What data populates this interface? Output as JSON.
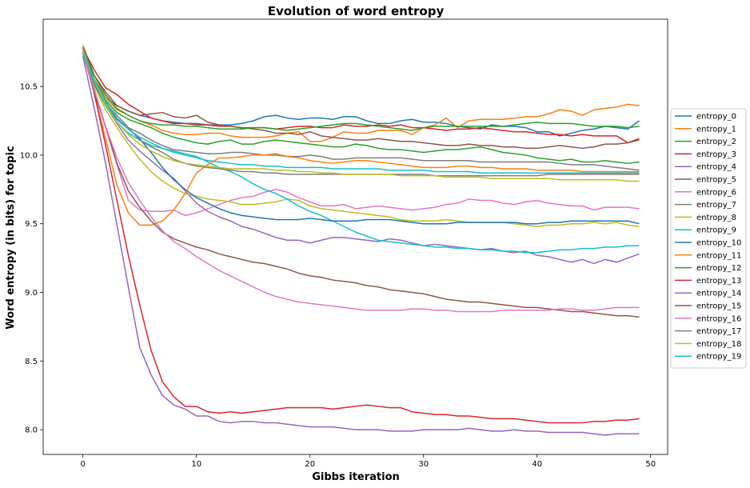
{
  "chart_data": {
    "type": "line",
    "title": "Evolution of word entropy",
    "xlabel": "Gibbs iteration",
    "ylabel": "Word entropy (in bits) for topic",
    "xlim": [
      -3.5,
      51.5
    ],
    "ylim": [
      7.82,
      10.99
    ],
    "xticks": [
      0,
      10,
      20,
      30,
      40,
      50
    ],
    "yticks": [
      8.0,
      8.5,
      9.0,
      9.5,
      10.0,
      10.5
    ],
    "grid": false,
    "legend_position": "center-right-outside",
    "x": [
      0,
      1,
      2,
      3,
      4,
      5,
      6,
      7,
      8,
      9,
      10,
      11,
      12,
      13,
      14,
      15,
      16,
      17,
      18,
      19,
      20,
      21,
      22,
      23,
      24,
      25,
      26,
      27,
      28,
      29,
      30,
      31,
      32,
      33,
      34,
      35,
      36,
      37,
      38,
      39,
      40,
      41,
      42,
      43,
      44,
      45,
      46,
      47,
      48,
      49
    ],
    "series": [
      {
        "name": "entropy_0",
        "color": "#1f77b4",
        "values": [
          10.74,
          10.55,
          10.42,
          10.36,
          10.32,
          10.29,
          10.27,
          10.25,
          10.24,
          10.23,
          10.23,
          10.22,
          10.22,
          10.22,
          10.23,
          10.25,
          10.28,
          10.29,
          10.27,
          10.26,
          10.27,
          10.27,
          10.26,
          10.28,
          10.28,
          10.25,
          10.23,
          10.23,
          10.25,
          10.26,
          10.24,
          10.24,
          10.23,
          10.21,
          10.2,
          10.19,
          10.22,
          10.21,
          10.21,
          10.2,
          10.17,
          10.17,
          10.14,
          10.16,
          10.18,
          10.19,
          10.21,
          10.2,
          10.19,
          10.25
        ]
      },
      {
        "name": "entropy_1",
        "color": "#ff7f0e",
        "values": [
          10.79,
          10.58,
          10.42,
          10.33,
          10.29,
          10.25,
          10.22,
          10.18,
          10.16,
          10.15,
          10.15,
          10.16,
          10.16,
          10.14,
          10.13,
          10.13,
          10.13,
          10.14,
          10.16,
          10.17,
          10.1,
          10.1,
          10.13,
          10.17,
          10.16,
          10.16,
          10.18,
          10.18,
          10.18,
          10.15,
          10.2,
          10.22,
          10.27,
          10.2,
          10.25,
          10.26,
          10.26,
          10.26,
          10.27,
          10.28,
          10.28,
          10.3,
          10.33,
          10.32,
          10.29,
          10.33,
          10.34,
          10.35,
          10.37,
          10.36
        ]
      },
      {
        "name": "entropy_2",
        "color": "#2ca02c",
        "values": [
          10.79,
          10.55,
          10.4,
          10.31,
          10.26,
          10.23,
          10.2,
          10.16,
          10.13,
          10.11,
          10.09,
          10.08,
          10.1,
          10.11,
          10.08,
          10.08,
          10.1,
          10.11,
          10.1,
          10.09,
          10.08,
          10.07,
          10.06,
          10.06,
          10.08,
          10.07,
          10.05,
          10.04,
          10.04,
          10.03,
          10.02,
          10.03,
          10.04,
          10.04,
          10.05,
          10.06,
          10.04,
          10.02,
          10.01,
          10.0,
          9.98,
          9.97,
          9.96,
          9.97,
          9.95,
          9.95,
          9.96,
          9.95,
          9.94,
          9.95
        ]
      },
      {
        "name": "entropy_3",
        "color": "#d62728",
        "values": [
          10.78,
          10.62,
          10.49,
          10.44,
          10.37,
          10.32,
          10.27,
          10.25,
          10.23,
          10.23,
          10.22,
          10.22,
          10.21,
          10.21,
          10.2,
          10.2,
          10.2,
          10.19,
          10.2,
          10.21,
          10.21,
          10.2,
          10.2,
          10.22,
          10.21,
          10.21,
          10.22,
          10.21,
          10.22,
          10.2,
          10.2,
          10.19,
          10.18,
          10.19,
          10.19,
          10.2,
          10.19,
          10.18,
          10.17,
          10.17,
          10.16,
          10.15,
          10.15,
          10.14,
          10.15,
          10.14,
          10.14,
          10.14,
          10.09,
          10.12
        ]
      },
      {
        "name": "entropy_4",
        "color": "#9467bd",
        "values": [
          10.72,
          10.52,
          10.36,
          10.23,
          10.11,
          10.03,
          9.96,
          9.89,
          9.83,
          9.74,
          9.65,
          9.59,
          9.55,
          9.52,
          9.48,
          9.46,
          9.43,
          9.4,
          9.38,
          9.38,
          9.36,
          9.38,
          9.4,
          9.4,
          9.39,
          9.38,
          9.37,
          9.39,
          9.38,
          9.36,
          9.34,
          9.35,
          9.34,
          9.33,
          9.32,
          9.31,
          9.32,
          9.3,
          9.29,
          9.3,
          9.27,
          9.26,
          9.24,
          9.22,
          9.24,
          9.21,
          9.24,
          9.22,
          9.25,
          9.28
        ]
      },
      {
        "name": "entropy_5",
        "color": "#8c564b",
        "values": [
          10.8,
          10.58,
          10.46,
          10.36,
          10.32,
          10.29,
          10.3,
          10.31,
          10.28,
          10.27,
          10.29,
          10.24,
          10.22,
          10.21,
          10.2,
          10.19,
          10.18,
          10.16,
          10.16,
          10.15,
          10.17,
          10.14,
          10.13,
          10.12,
          10.11,
          10.11,
          10.12,
          10.11,
          10.1,
          10.1,
          10.09,
          10.08,
          10.07,
          10.07,
          10.08,
          10.07,
          10.07,
          10.06,
          10.06,
          10.05,
          10.05,
          10.06,
          10.07,
          10.06,
          10.05,
          10.06,
          10.08,
          10.08,
          10.09,
          10.11
        ]
      },
      {
        "name": "entropy_6",
        "color": "#e377c2",
        "values": [
          10.74,
          10.46,
          10.2,
          9.93,
          9.67,
          9.6,
          9.59,
          9.59,
          9.6,
          9.56,
          9.58,
          9.61,
          9.64,
          9.67,
          9.69,
          9.7,
          9.73,
          9.75,
          9.73,
          9.69,
          9.66,
          9.63,
          9.63,
          9.64,
          9.61,
          9.62,
          9.63,
          9.62,
          9.61,
          9.6,
          9.61,
          9.62,
          9.64,
          9.65,
          9.68,
          9.67,
          9.67,
          9.65,
          9.64,
          9.66,
          9.67,
          9.65,
          9.64,
          9.63,
          9.63,
          9.6,
          9.62,
          9.62,
          9.62,
          9.61
        ]
      },
      {
        "name": "entropy_7",
        "color": "#7f7f7f",
        "values": [
          10.78,
          10.52,
          10.36,
          10.26,
          10.2,
          10.16,
          10.11,
          10.07,
          10.04,
          10.03,
          10.02,
          10.01,
          10.01,
          10.02,
          10.02,
          10.01,
          10.0,
          10.0,
          9.99,
          9.99,
          10.0,
          9.99,
          9.97,
          9.97,
          9.98,
          9.98,
          9.98,
          9.98,
          9.98,
          9.97,
          9.96,
          9.96,
          9.96,
          9.96,
          9.96,
          9.95,
          9.95,
          9.95,
          9.95,
          9.95,
          9.95,
          9.95,
          9.94,
          9.93,
          9.93,
          9.93,
          9.92,
          9.91,
          9.9,
          9.89
        ]
      },
      {
        "name": "entropy_8",
        "color": "#bcbd22",
        "values": [
          10.78,
          10.5,
          10.33,
          10.2,
          10.08,
          9.97,
          9.88,
          9.81,
          9.76,
          9.72,
          9.7,
          9.68,
          9.67,
          9.66,
          9.64,
          9.64,
          9.65,
          9.66,
          9.68,
          9.67,
          9.63,
          9.61,
          9.6,
          9.59,
          9.58,
          9.57,
          9.56,
          9.55,
          9.53,
          9.52,
          9.52,
          9.52,
          9.53,
          9.52,
          9.51,
          9.51,
          9.51,
          9.51,
          9.5,
          9.49,
          9.48,
          9.49,
          9.49,
          9.5,
          9.5,
          9.51,
          9.5,
          9.51,
          9.49,
          9.48
        ]
      },
      {
        "name": "entropy_9",
        "color": "#17becf",
        "values": [
          10.76,
          10.52,
          10.36,
          10.24,
          10.16,
          10.11,
          10.07,
          10.05,
          10.03,
          10.01,
          9.99,
          9.95,
          9.91,
          9.88,
          9.84,
          9.79,
          9.75,
          9.72,
          9.68,
          9.63,
          9.59,
          9.56,
          9.52,
          9.48,
          9.44,
          9.41,
          9.38,
          9.37,
          9.36,
          9.35,
          9.34,
          9.33,
          9.33,
          9.32,
          9.32,
          9.31,
          9.31,
          9.3,
          9.3,
          9.29,
          9.29,
          9.3,
          9.31,
          9.31,
          9.32,
          9.32,
          9.33,
          9.33,
          9.34,
          9.34
        ]
      },
      {
        "name": "entropy_10",
        "color": "#1f77b4",
        "values": [
          10.76,
          10.52,
          10.37,
          10.26,
          10.19,
          10.12,
          10.02,
          9.91,
          9.82,
          9.75,
          9.69,
          9.65,
          9.61,
          9.58,
          9.56,
          9.55,
          9.54,
          9.53,
          9.53,
          9.53,
          9.54,
          9.53,
          9.52,
          9.52,
          9.52,
          9.53,
          9.53,
          9.53,
          9.52,
          9.51,
          9.5,
          9.5,
          9.5,
          9.51,
          9.51,
          9.51,
          9.51,
          9.51,
          9.51,
          9.5,
          9.5,
          9.51,
          9.51,
          9.52,
          9.52,
          9.52,
          9.52,
          9.52,
          9.52,
          9.5
        ]
      },
      {
        "name": "entropy_11",
        "color": "#ff7f0e",
        "values": [
          10.8,
          10.45,
          10.12,
          9.78,
          9.58,
          9.49,
          9.49,
          9.52,
          9.6,
          9.72,
          9.87,
          9.93,
          9.98,
          9.98,
          9.99,
          10.0,
          10.0,
          10.01,
          9.99,
          9.98,
          9.96,
          9.95,
          9.94,
          9.95,
          9.96,
          9.96,
          9.95,
          9.94,
          9.93,
          9.92,
          9.91,
          9.91,
          9.91,
          9.92,
          9.92,
          9.91,
          9.91,
          9.9,
          9.9,
          9.9,
          9.89,
          9.89,
          9.89,
          9.89,
          9.88,
          9.88,
          9.88,
          9.88,
          9.88,
          9.88
        ]
      },
      {
        "name": "entropy_12",
        "color": "#2ca02c",
        "values": [
          10.78,
          10.58,
          10.44,
          10.34,
          10.29,
          10.25,
          10.23,
          10.22,
          10.22,
          10.21,
          10.21,
          10.2,
          10.19,
          10.19,
          10.19,
          10.2,
          10.2,
          10.19,
          10.18,
          10.19,
          10.2,
          10.21,
          10.22,
          10.23,
          10.23,
          10.22,
          10.21,
          10.2,
          10.19,
          10.18,
          10.2,
          10.21,
          10.21,
          10.21,
          10.21,
          10.21,
          10.21,
          10.21,
          10.22,
          10.23,
          10.24,
          10.23,
          10.23,
          10.23,
          10.22,
          10.21,
          10.21,
          10.21,
          10.2,
          10.21
        ]
      },
      {
        "name": "entropy_13",
        "color": "#d62728",
        "values": [
          10.76,
          10.45,
          10.07,
          9.67,
          9.27,
          8.91,
          8.58,
          8.35,
          8.24,
          8.17,
          8.17,
          8.13,
          8.12,
          8.13,
          8.12,
          8.13,
          8.14,
          8.15,
          8.16,
          8.16,
          8.16,
          8.16,
          8.15,
          8.16,
          8.17,
          8.18,
          8.17,
          8.16,
          8.16,
          8.13,
          8.12,
          8.11,
          8.11,
          8.1,
          8.1,
          8.09,
          8.08,
          8.08,
          8.08,
          8.07,
          8.06,
          8.05,
          8.05,
          8.05,
          8.05,
          8.06,
          8.06,
          8.07,
          8.07,
          8.08
        ]
      },
      {
        "name": "entropy_14",
        "color": "#9467bd",
        "values": [
          10.72,
          10.34,
          9.94,
          9.49,
          9.04,
          8.6,
          8.4,
          8.25,
          8.18,
          8.15,
          8.1,
          8.1,
          8.06,
          8.05,
          8.06,
          8.06,
          8.05,
          8.05,
          8.04,
          8.03,
          8.02,
          8.02,
          8.02,
          8.01,
          8.0,
          8.0,
          8.0,
          7.99,
          7.99,
          7.99,
          8.0,
          8.0,
          8.0,
          8.0,
          8.01,
          8.0,
          7.99,
          7.99,
          8.0,
          7.99,
          7.99,
          7.98,
          7.98,
          7.98,
          7.98,
          7.97,
          7.96,
          7.97,
          7.97,
          7.97
        ]
      },
      {
        "name": "entropy_15",
        "color": "#8c564b",
        "values": [
          10.75,
          10.46,
          10.21,
          9.94,
          9.74,
          9.62,
          9.52,
          9.44,
          9.39,
          9.36,
          9.33,
          9.31,
          9.28,
          9.26,
          9.24,
          9.22,
          9.21,
          9.19,
          9.17,
          9.14,
          9.12,
          9.11,
          9.09,
          9.08,
          9.07,
          9.05,
          9.04,
          9.02,
          9.01,
          9.0,
          8.99,
          8.97,
          8.95,
          8.94,
          8.93,
          8.93,
          8.92,
          8.91,
          8.9,
          8.89,
          8.89,
          8.88,
          8.87,
          8.86,
          8.86,
          8.85,
          8.84,
          8.83,
          8.83,
          8.82
        ]
      },
      {
        "name": "entropy_16",
        "color": "#e377c2",
        "values": [
          10.74,
          10.48,
          10.21,
          9.98,
          9.8,
          9.67,
          9.55,
          9.45,
          9.37,
          9.32,
          9.26,
          9.21,
          9.16,
          9.12,
          9.08,
          9.04,
          9.0,
          8.97,
          8.95,
          8.93,
          8.92,
          8.91,
          8.9,
          8.89,
          8.88,
          8.87,
          8.87,
          8.87,
          8.87,
          8.88,
          8.88,
          8.87,
          8.87,
          8.86,
          8.86,
          8.86,
          8.86,
          8.87,
          8.87,
          8.87,
          8.87,
          8.87,
          8.88,
          8.88,
          8.87,
          8.87,
          8.88,
          8.89,
          8.89,
          8.89
        ]
      },
      {
        "name": "entropy_17",
        "color": "#7f7f7f",
        "values": [
          10.78,
          10.53,
          10.38,
          10.29,
          10.2,
          10.11,
          10.06,
          10.02,
          9.97,
          9.94,
          9.92,
          9.91,
          9.9,
          9.89,
          9.88,
          9.88,
          9.87,
          9.87,
          9.86,
          9.86,
          9.86,
          9.86,
          9.86,
          9.86,
          9.86,
          9.86,
          9.86,
          9.86,
          9.86,
          9.86,
          9.86,
          9.85,
          9.85,
          9.85,
          9.85,
          9.85,
          9.85,
          9.85,
          9.85,
          9.85,
          9.85,
          9.86,
          9.86,
          9.86,
          9.86,
          9.86,
          9.86,
          9.86,
          9.86,
          9.86
        ]
      },
      {
        "name": "entropy_18",
        "color": "#bcbd22",
        "values": [
          10.76,
          10.54,
          10.37,
          10.24,
          10.15,
          10.08,
          10.03,
          9.99,
          9.96,
          9.94,
          9.93,
          9.92,
          9.91,
          9.9,
          9.9,
          9.9,
          9.9,
          9.89,
          9.89,
          9.88,
          9.88,
          9.87,
          9.87,
          9.86,
          9.86,
          9.86,
          9.86,
          9.86,
          9.85,
          9.85,
          9.85,
          9.85,
          9.84,
          9.84,
          9.84,
          9.84,
          9.83,
          9.83,
          9.83,
          9.83,
          9.83,
          9.83,
          9.82,
          9.82,
          9.82,
          9.82,
          9.82,
          9.82,
          9.81,
          9.81
        ]
      },
      {
        "name": "entropy_19",
        "color": "#17becf",
        "values": [
          10.74,
          10.55,
          10.39,
          10.27,
          10.19,
          10.13,
          10.09,
          10.05,
          10.02,
          10.0,
          9.98,
          9.96,
          9.95,
          9.94,
          9.93,
          9.93,
          9.92,
          9.92,
          9.91,
          9.91,
          9.91,
          9.91,
          9.9,
          9.9,
          9.9,
          9.9,
          9.9,
          9.89,
          9.89,
          9.89,
          9.89,
          9.88,
          9.88,
          9.88,
          9.88,
          9.87,
          9.87,
          9.87,
          9.87,
          9.87,
          9.87,
          9.87,
          9.87,
          9.87,
          9.87,
          9.87,
          9.87,
          9.87,
          9.87,
          9.87
        ]
      }
    ]
  }
}
